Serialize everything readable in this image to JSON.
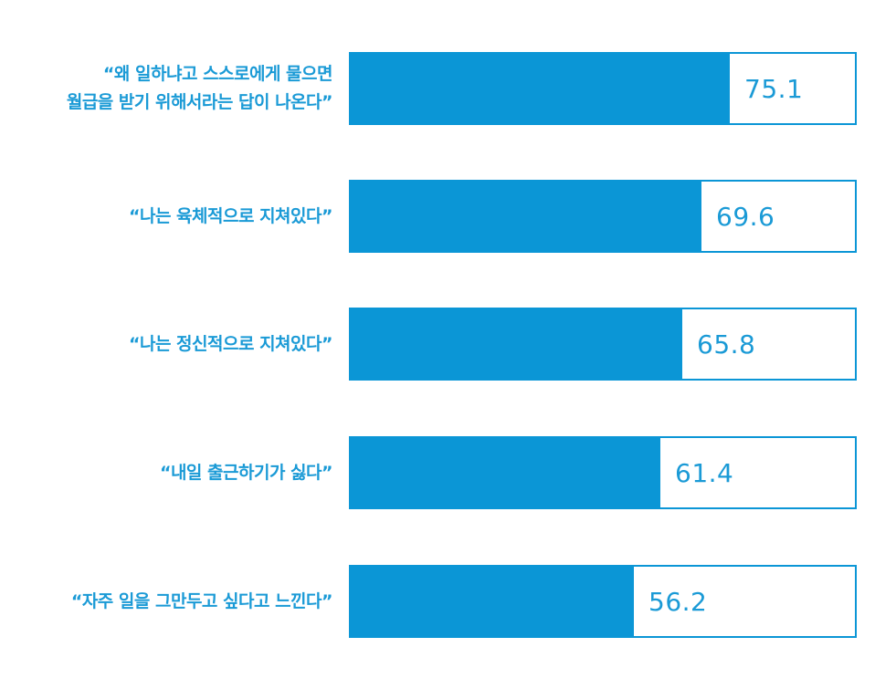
{
  "colors": {
    "bar": "#0b96d6",
    "text": "#1a9ad6",
    "background": "#ffffff"
  },
  "chart_data": {
    "type": "bar",
    "orientation": "horizontal",
    "categories": [
      [
        "“왜 일하냐고 스스로에게 물으면",
        "월급을 받기 위해서라는 답이 나온다”"
      ],
      [
        "“나는 육체적으로 지쳐있다”"
      ],
      [
        "“나는 정신적으로 지쳐있다”"
      ],
      [
        "“내일 출근하기가 싫다”"
      ],
      [
        "“자주 일을 그만두고 싶다고 느낀다”"
      ]
    ],
    "values": [
      75.1,
      69.6,
      65.8,
      61.4,
      56.2
    ],
    "value_labels": [
      "75.1",
      "69.6",
      "65.8",
      "61.4",
      "56.2"
    ],
    "xlim": [
      0,
      100
    ],
    "grid": false,
    "legend": "none"
  }
}
